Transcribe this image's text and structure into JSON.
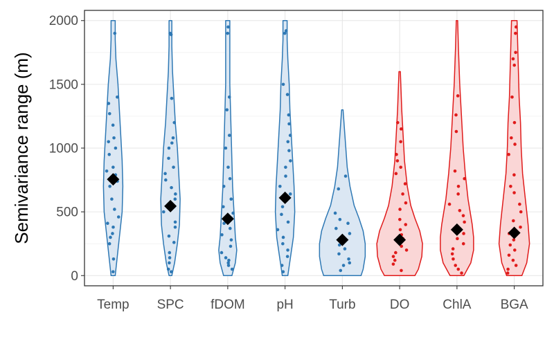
{
  "chart_data": {
    "type": "violin",
    "title": "",
    "xlabel": "",
    "ylabel": "Semivariance range (m)",
    "ylim": [
      -80,
      2080
    ],
    "yticks": [
      0,
      500,
      1000,
      1500,
      2000
    ],
    "grid": true,
    "legend": "none",
    "categories": [
      "Temp",
      "SPC",
      "fDOM",
      "pH",
      "Turb",
      "DO",
      "ChlA",
      "BGA"
    ],
    "groups": [
      {
        "name": "Temp",
        "color": "#2e78b4",
        "fill": "#dbe7f3",
        "mean": 755,
        "violin": [
          [
            0,
            3
          ],
          [
            50,
            4
          ],
          [
            150,
            6
          ],
          [
            300,
            9
          ],
          [
            400,
            11
          ],
          [
            500,
            13
          ],
          [
            700,
            14
          ],
          [
            900,
            13
          ],
          [
            1100,
            11
          ],
          [
            1300,
            9
          ],
          [
            1500,
            7
          ],
          [
            1700,
            4
          ],
          [
            1850,
            3
          ],
          [
            2000,
            3
          ]
        ],
        "points": [
          30,
          130,
          250,
          300,
          330,
          380,
          410,
          460,
          520,
          600,
          700,
          740,
          790,
          820,
          850,
          950,
          1000,
          1050,
          1080,
          1180,
          1270,
          1350,
          1400,
          1900
        ]
      },
      {
        "name": "SPC",
        "color": "#2e78b4",
        "fill": "#dbe7f3",
        "mean": 545,
        "violin": [
          [
            0,
            2
          ],
          [
            100,
            6
          ],
          [
            250,
            10
          ],
          [
            400,
            13
          ],
          [
            600,
            14
          ],
          [
            800,
            12
          ],
          [
            1000,
            10
          ],
          [
            1200,
            7
          ],
          [
            1400,
            5
          ],
          [
            1600,
            3
          ],
          [
            1800,
            2
          ],
          [
            2000,
            2
          ]
        ],
        "points": [
          30,
          50,
          100,
          140,
          180,
          260,
          310,
          380,
          420,
          500,
          540,
          600,
          640,
          690,
          750,
          800,
          850,
          920,
          1000,
          1040,
          1080,
          1200,
          1390,
          1890,
          1900
        ]
      },
      {
        "name": "fDOM",
        "color": "#2e78b4",
        "fill": "#dbe7f3",
        "mean": 445,
        "violin": [
          [
            0,
            6
          ],
          [
            100,
            11
          ],
          [
            200,
            13
          ],
          [
            300,
            11
          ],
          [
            500,
            9
          ],
          [
            700,
            7
          ],
          [
            900,
            6
          ],
          [
            1100,
            5
          ],
          [
            1300,
            4
          ],
          [
            1500,
            3
          ],
          [
            1800,
            3
          ],
          [
            2000,
            3
          ]
        ],
        "points": [
          50,
          80,
          100,
          120,
          140,
          180,
          230,
          280,
          320,
          370,
          410,
          450,
          490,
          540,
          600,
          700,
          760,
          850,
          1000,
          1100,
          1300,
          1400,
          1900,
          1950
        ]
      },
      {
        "name": "pH",
        "color": "#2e78b4",
        "fill": "#dbe7f3",
        "mean": 610,
        "violin": [
          [
            0,
            4
          ],
          [
            150,
            8
          ],
          [
            300,
            12
          ],
          [
            500,
            14
          ],
          [
            700,
            13
          ],
          [
            900,
            11
          ],
          [
            1100,
            9
          ],
          [
            1300,
            7
          ],
          [
            1500,
            6
          ],
          [
            1700,
            4
          ],
          [
            1850,
            3
          ],
          [
            2000,
            3
          ]
        ],
        "points": [
          30,
          80,
          150,
          200,
          250,
          300,
          360,
          420,
          480,
          540,
          600,
          640,
          700,
          780,
          850,
          900,
          980,
          1050,
          1100,
          1190,
          1260,
          1420,
          1500,
          1900,
          1920
        ]
      },
      {
        "name": "Turb",
        "color": "#2e78b4",
        "fill": "#dbe7f3",
        "mean": 280,
        "violin": [
          [
            0,
            27
          ],
          [
            50,
            30
          ],
          [
            150,
            33
          ],
          [
            250,
            33
          ],
          [
            350,
            30
          ],
          [
            450,
            24
          ],
          [
            550,
            17
          ],
          [
            700,
            11
          ],
          [
            850,
            7
          ],
          [
            1000,
            5
          ],
          [
            1150,
            3
          ],
          [
            1300,
            1
          ]
        ],
        "points": [
          40,
          80,
          100,
          130,
          170,
          210,
          240,
          270,
          300,
          330,
          370,
          410,
          440,
          490,
          680,
          780
        ]
      },
      {
        "name": "DO",
        "color": "#e01b1b",
        "fill": "#fad6d6",
        "mean": 280,
        "violin": [
          [
            0,
            22
          ],
          [
            50,
            27
          ],
          [
            150,
            32
          ],
          [
            250,
            33
          ],
          [
            350,
            29
          ],
          [
            450,
            22
          ],
          [
            550,
            16
          ],
          [
            700,
            11
          ],
          [
            900,
            7
          ],
          [
            1100,
            5
          ],
          [
            1300,
            3
          ],
          [
            1450,
            2
          ],
          [
            1600,
            1
          ]
        ],
        "points": [
          40,
          90,
          120,
          150,
          180,
          200,
          230,
          260,
          290,
          320,
          360,
          400,
          440,
          520,
          570,
          640,
          720,
          800,
          850,
          900,
          950,
          1050,
          1150,
          1200
        ]
      },
      {
        "name": "ChlA",
        "color": "#e01b1b",
        "fill": "#fad6d6",
        "mean": 360,
        "violin": [
          [
            0,
            10
          ],
          [
            100,
            20
          ],
          [
            200,
            24
          ],
          [
            300,
            24
          ],
          [
            400,
            22
          ],
          [
            600,
            16
          ],
          [
            800,
            12
          ],
          [
            1000,
            9
          ],
          [
            1200,
            7
          ],
          [
            1500,
            4
          ],
          [
            1800,
            2
          ],
          [
            2000,
            1
          ]
        ],
        "points": [
          20,
          50,
          80,
          130,
          170,
          210,
          250,
          290,
          330,
          360,
          420,
          470,
          510,
          560,
          640,
          700,
          760,
          820,
          1130,
          1260,
          1410
        ]
      },
      {
        "name": "BGA",
        "color": "#e01b1b",
        "fill": "#fad6d6",
        "mean": 335,
        "violin": [
          [
            0,
            11
          ],
          [
            100,
            18
          ],
          [
            250,
            22
          ],
          [
            400,
            20
          ],
          [
            600,
            16
          ],
          [
            800,
            12
          ],
          [
            1000,
            10
          ],
          [
            1200,
            9
          ],
          [
            1400,
            7
          ],
          [
            1600,
            6
          ],
          [
            1800,
            5
          ],
          [
            2000,
            4
          ]
        ],
        "points": [
          20,
          50,
          80,
          120,
          160,
          200,
          240,
          280,
          330,
          380,
          430,
          500,
          560,
          650,
          700,
          790,
          950,
          1030,
          1080,
          1200,
          1400,
          1650,
          1700,
          1750,
          1900,
          1950
        ]
      }
    ]
  }
}
